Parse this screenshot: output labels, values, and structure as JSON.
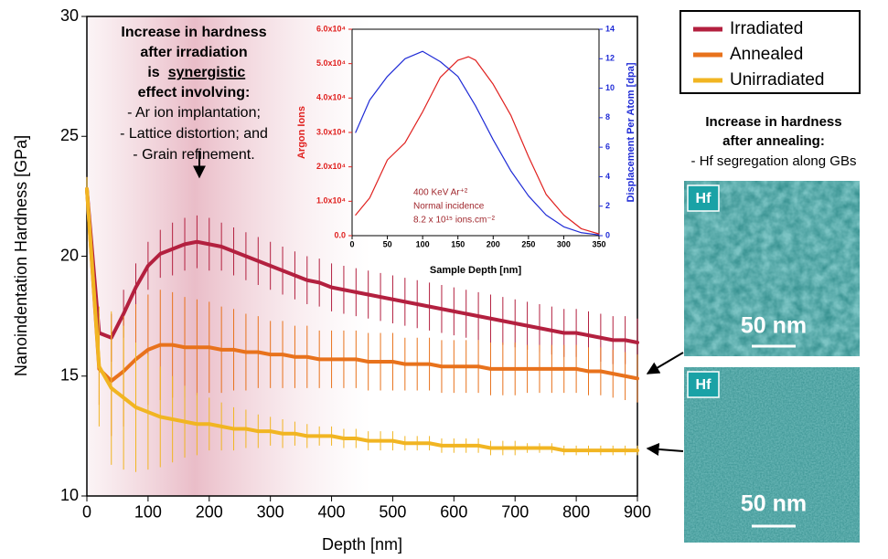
{
  "chart_data": [
    {
      "type": "line",
      "xlabel": "Depth [nm]",
      "ylabel": "Nanoindentation Hardness [GPa]",
      "xlim": [
        0,
        900
      ],
      "xticks": [
        0,
        100,
        200,
        300,
        400,
        500,
        600,
        700,
        800,
        900
      ],
      "ylim": [
        10,
        30
      ],
      "yticks": [
        10,
        15,
        20,
        25,
        30
      ],
      "x": [
        0,
        20,
        40,
        60,
        80,
        100,
        120,
        140,
        160,
        180,
        200,
        220,
        240,
        260,
        280,
        300,
        320,
        340,
        360,
        380,
        400,
        420,
        440,
        460,
        480,
        500,
        520,
        540,
        560,
        580,
        600,
        620,
        640,
        660,
        680,
        700,
        720,
        740,
        760,
        780,
        800,
        820,
        840,
        860,
        880,
        900
      ],
      "series": [
        {
          "name": "Irradiated",
          "color": "#b3203f",
          "values": [
            22.8,
            16.8,
            16.6,
            17.6,
            18.7,
            19.6,
            20.1,
            20.3,
            20.5,
            20.6,
            20.5,
            20.4,
            20.2,
            20.0,
            19.8,
            19.6,
            19.4,
            19.2,
            19.0,
            18.9,
            18.7,
            18.6,
            18.5,
            18.4,
            18.3,
            18.2,
            18.1,
            18.0,
            17.9,
            17.8,
            17.7,
            17.6,
            17.5,
            17.4,
            17.3,
            17.2,
            17.1,
            17.0,
            16.9,
            16.8,
            16.8,
            16.7,
            16.6,
            16.5,
            16.5,
            16.4
          ],
          "errors": [
            0.5,
            0.8,
            1.0,
            1.0,
            1.0,
            1.0,
            1.0,
            1.1,
            1.1,
            1.1,
            1.1,
            1.0,
            1.0,
            1.0,
            1.0,
            1.0,
            1.0,
            1.0,
            1.0,
            1.0,
            1.0,
            1.0,
            1.0,
            1.0,
            1.0,
            1.0,
            1.0,
            1.0,
            1.0,
            1.0,
            1.0,
            1.0,
            1.0,
            1.0,
            1.0,
            1.0,
            1.0,
            1.0,
            1.0,
            1.0,
            1.0,
            1.0,
            1.0,
            1.0,
            1.0,
            1.0
          ]
        },
        {
          "name": "Annealed",
          "color": "#e8721c",
          "values": [
            22.8,
            15.3,
            14.8,
            15.2,
            15.7,
            16.1,
            16.3,
            16.3,
            16.2,
            16.2,
            16.2,
            16.1,
            16.1,
            16.0,
            16.0,
            15.9,
            15.9,
            15.8,
            15.8,
            15.7,
            15.7,
            15.7,
            15.7,
            15.6,
            15.6,
            15.6,
            15.5,
            15.5,
            15.5,
            15.4,
            15.4,
            15.4,
            15.4,
            15.3,
            15.3,
            15.3,
            15.3,
            15.3,
            15.3,
            15.3,
            15.3,
            15.2,
            15.2,
            15.1,
            15.0,
            14.9
          ],
          "errors": [
            0.5,
            1.5,
            2.3,
            2.3,
            2.3,
            2.3,
            2.3,
            2.2,
            2.1,
            2.0,
            1.9,
            1.8,
            1.7,
            1.6,
            1.5,
            1.4,
            1.4,
            1.3,
            1.3,
            1.2,
            1.2,
            1.2,
            1.2,
            1.2,
            1.2,
            1.2,
            1.1,
            1.1,
            1.1,
            1.1,
            1.1,
            1.1,
            1.1,
            1.1,
            1.1,
            1.1,
            1.0,
            1.0,
            1.0,
            1.0,
            1.0,
            1.0,
            1.0,
            1.0,
            1.0,
            1.0
          ]
        },
        {
          "name": "Unirradiated",
          "color": "#f1b522",
          "values": [
            22.8,
            15.4,
            14.5,
            14.1,
            13.7,
            13.5,
            13.3,
            13.2,
            13.1,
            13.0,
            13.0,
            12.9,
            12.8,
            12.8,
            12.7,
            12.7,
            12.6,
            12.6,
            12.5,
            12.5,
            12.5,
            12.4,
            12.4,
            12.3,
            12.3,
            12.3,
            12.2,
            12.2,
            12.2,
            12.1,
            12.1,
            12.1,
            12.1,
            12.0,
            12.0,
            12.0,
            12.0,
            12.0,
            12.0,
            11.9,
            11.9,
            11.9,
            11.9,
            11.9,
            11.9,
            11.9
          ],
          "errors": [
            0.5,
            2.5,
            3.2,
            3.0,
            2.7,
            2.4,
            2.1,
            1.8,
            1.5,
            1.3,
            1.1,
            1.0,
            0.9,
            0.8,
            0.7,
            0.6,
            0.6,
            0.5,
            0.5,
            0.4,
            0.4,
            0.4,
            0.4,
            0.4,
            0.4,
            0.4,
            0.3,
            0.3,
            0.3,
            0.3,
            0.3,
            0.3,
            0.3,
            0.3,
            0.3,
            0.3,
            0.2,
            0.2,
            0.2,
            0.2,
            0.2,
            0.2,
            0.2,
            0.2,
            0.2,
            0.2
          ]
        }
      ],
      "annotation": {
        "lines": [
          "Increase in hardness",
          "after irradiation",
          "is",
          "synergistic",
          "effect involving:",
          "- Ar ion implantation;",
          "- Lattice distortion; and",
          "- Grain refinement."
        ]
      }
    },
    {
      "type": "line",
      "xlabel": "Sample Depth [nm]",
      "ylabel": "Argon Ions",
      "y2label": "Displacement Per Atom [dpa]",
      "xlim": [
        0,
        350
      ],
      "xticks": [
        0,
        50,
        100,
        150,
        200,
        250,
        300,
        350
      ],
      "ylim": [
        0,
        60000
      ],
      "yticks": [
        {
          "value": 0,
          "label": "0.0"
        },
        {
          "value": 10000,
          "label": "1.0x10⁴"
        },
        {
          "value": 20000,
          "label": "2.0x10⁴"
        },
        {
          "value": 30000,
          "label": "3.0x10⁴"
        },
        {
          "value": 40000,
          "label": "4.0x10⁴"
        },
        {
          "value": 50000,
          "label": "5.0x10⁴"
        },
        {
          "value": 60000,
          "label": "6.0x10⁴"
        }
      ],
      "y2lim": [
        0,
        14
      ],
      "y2ticks": [
        0,
        2,
        4,
        6,
        8,
        10,
        12,
        14
      ],
      "x": [
        5,
        25,
        50,
        75,
        100,
        125,
        150,
        165,
        175,
        200,
        225,
        250,
        275,
        300,
        325,
        350
      ],
      "series": [
        {
          "color": "#e0211f",
          "values": [
            6000,
            11000,
            22000,
            27000,
            36000,
            46000,
            51000,
            52000,
            51000,
            44000,
            35000,
            23000,
            12000,
            6000,
            2000,
            500
          ]
        },
        {
          "color": "#1f2bd6",
          "axis": "y2",
          "values": [
            7,
            9.2,
            10.8,
            12,
            12.5,
            11.8,
            10.8,
            9.6,
            8.8,
            6.5,
            4.4,
            2.7,
            1.4,
            0.6,
            0.2,
            0.05
          ]
        }
      ],
      "annotation": {
        "lines": [
          "400 KeV Ar⁺²",
          "Normal incidence",
          "8.2 x 10¹⁵ ions.cm⁻²"
        ]
      }
    }
  ],
  "side_panel": {
    "heading": [
      "Increase in hardness",
      "after annealing:"
    ],
    "note": "- Hf segregation along GBs",
    "images": [
      {
        "label": "Hf",
        "scale": "50 nm"
      },
      {
        "label": "Hf",
        "scale": "50 nm"
      }
    ]
  }
}
